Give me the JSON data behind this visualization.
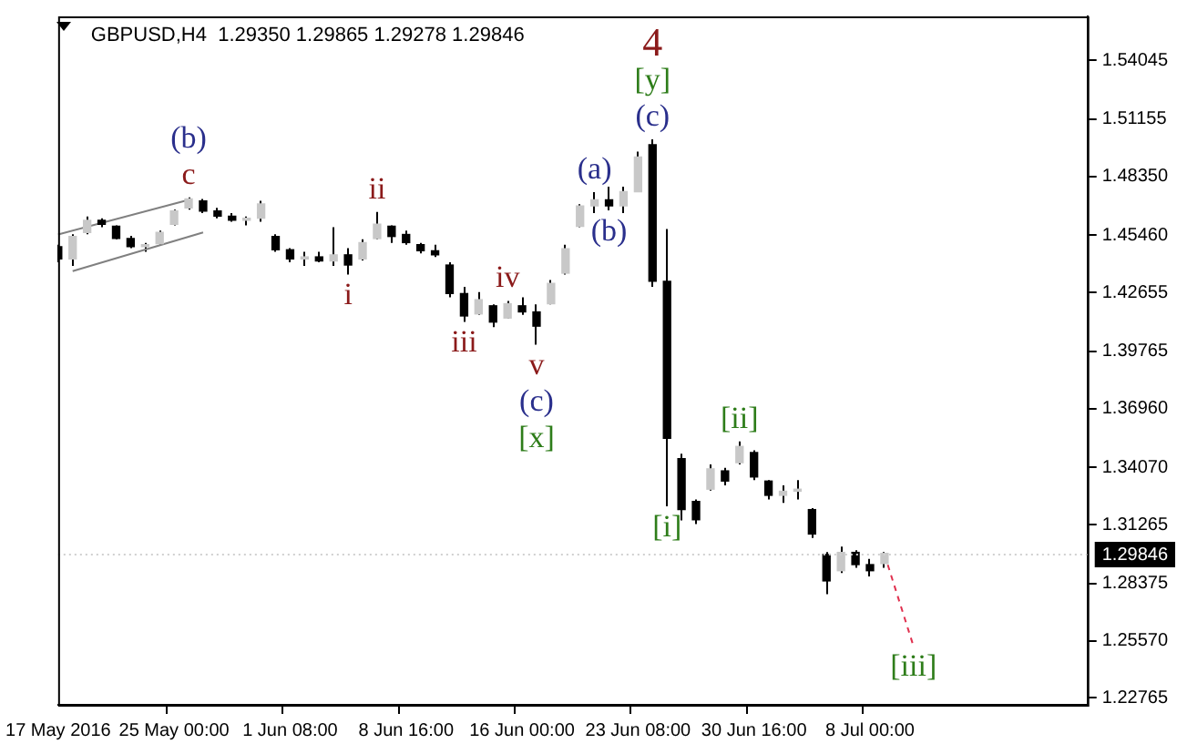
{
  "chart_data": {
    "type": "candlestick",
    "title": "GBPUSD,H4  1.29350 1.29865 1.29278 1.29846",
    "categories": [
      "17 May 2016",
      null,
      null,
      null,
      null,
      null,
      null,
      null,
      "25 May 00:00",
      null,
      null,
      null,
      null,
      null,
      null,
      null,
      "1 Jun 08:00",
      null,
      null,
      null,
      null,
      null,
      null,
      null,
      "8 Jun 16:00",
      null,
      null,
      null,
      null,
      null,
      null,
      null,
      "16 Jun 00:00",
      null,
      null,
      null,
      null,
      null,
      null,
      null,
      "23 Jun 08:00",
      null,
      null,
      null,
      null,
      null,
      null,
      null,
      "30 Jun 16:00",
      null,
      null,
      null,
      null,
      null,
      null,
      null,
      "8 Jul 00:00",
      null,
      null,
      null,
      null,
      null,
      null,
      null,
      null,
      null,
      null,
      null,
      null,
      null,
      null,
      null
    ],
    "ohlc": [
      [
        1.449,
        1.45,
        1.4414,
        1.443
      ],
      [
        1.443,
        1.4551,
        1.4396,
        1.454
      ],
      [
        1.456,
        1.4638,
        1.4551,
        1.462
      ],
      [
        1.462,
        1.4629,
        1.4586,
        1.46
      ],
      [
        1.459,
        1.4595,
        1.4526,
        1.453
      ],
      [
        1.453,
        1.4543,
        1.4483,
        1.449
      ],
      [
        1.449,
        1.4508,
        1.4465,
        1.45
      ],
      [
        1.4505,
        1.4569,
        1.45,
        1.456
      ],
      [
        1.46,
        1.4672,
        1.4595,
        1.4665
      ],
      [
        1.468,
        1.4732,
        1.4672,
        1.4725
      ],
      [
        1.4715,
        1.4724,
        1.4655,
        1.4665
      ],
      [
        1.4665,
        1.4681,
        1.4629,
        1.464
      ],
      [
        1.464,
        1.4655,
        1.4612,
        1.462
      ],
      [
        1.462,
        1.4638,
        1.4595,
        1.463
      ],
      [
        1.463,
        1.4715,
        1.4612,
        1.47
      ],
      [
        1.454,
        1.4551,
        1.4465,
        1.4475
      ],
      [
        1.4475,
        1.4483,
        1.4414,
        1.443
      ],
      [
        1.443,
        1.4465,
        1.4396,
        1.444
      ],
      [
        1.444,
        1.4465,
        1.4414,
        1.442
      ],
      [
        1.442,
        1.4586,
        1.4396,
        1.445
      ],
      [
        1.445,
        1.4483,
        1.4353,
        1.44
      ],
      [
        1.443,
        1.4526,
        1.4422,
        1.451
      ],
      [
        1.453,
        1.466,
        1.4526,
        1.46
      ],
      [
        1.459,
        1.4595,
        1.4508,
        1.454
      ],
      [
        1.455,
        1.4569,
        1.45,
        1.451
      ],
      [
        1.45,
        1.4508,
        1.4457,
        1.447
      ],
      [
        1.447,
        1.45,
        1.4439,
        1.445
      ],
      [
        1.44,
        1.4414,
        1.4241,
        1.426
      ],
      [
        1.426,
        1.4293,
        1.4121,
        1.415
      ],
      [
        1.416,
        1.4267,
        1.4155,
        1.423
      ],
      [
        1.42,
        1.4207,
        1.4095,
        1.412
      ],
      [
        1.414,
        1.4224,
        1.4138,
        1.421
      ],
      [
        1.42,
        1.4241,
        1.4155,
        1.417
      ],
      [
        1.417,
        1.4207,
        1.4009,
        1.41
      ],
      [
        1.421,
        1.4327,
        1.4207,
        1.431
      ],
      [
        1.436,
        1.45,
        1.4353,
        1.448
      ],
      [
        1.459,
        1.4698,
        1.4586,
        1.469
      ],
      [
        1.469,
        1.4758,
        1.4655,
        1.472
      ],
      [
        1.472,
        1.4784,
        1.4668,
        1.469
      ],
      [
        1.469,
        1.4784,
        1.4655,
        1.476
      ],
      [
        1.476,
        1.4956,
        1.4758,
        1.493
      ],
      [
        1.499,
        1.5017,
        1.4293,
        1.432
      ],
      [
        1.432,
        1.4577,
        1.3216,
        1.355
      ],
      [
        1.345,
        1.3474,
        1.3147,
        1.32
      ],
      [
        1.324,
        1.325,
        1.3129,
        1.315
      ],
      [
        1.33,
        1.3422,
        1.3293,
        1.34
      ],
      [
        1.339,
        1.3405,
        1.3319,
        1.334
      ],
      [
        1.343,
        1.3534,
        1.3422,
        1.351
      ],
      [
        1.348,
        1.3491,
        1.3345,
        1.336
      ],
      [
        1.334,
        1.3345,
        1.325,
        1.327
      ],
      [
        1.327,
        1.3319,
        1.3233,
        1.329
      ],
      [
        1.329,
        1.3345,
        1.325,
        1.33
      ],
      [
        1.32,
        1.3207,
        1.3061,
        1.308
      ],
      [
        1.298,
        1.2992,
        1.2785,
        1.285
      ],
      [
        1.29,
        1.3018,
        1.2889,
        1.299
      ],
      [
        1.299,
        1.3001,
        1.2914,
        1.293
      ],
      [
        1.293,
        1.2958,
        1.2872,
        1.29
      ],
      [
        1.2935,
        1.2992,
        1.2914,
        1.2985
      ],
      null,
      null,
      null,
      null,
      null,
      null,
      null,
      null,
      null,
      null,
      null,
      null,
      null,
      null
    ],
    "color": "#000000",
    "colors": [
      "#000000",
      "#c8c8c8",
      "#c8c8c8",
      "#000000",
      "#000000",
      "#000000",
      "#c8c8c8",
      "#c8c8c8",
      "#c8c8c8",
      "#c8c8c8",
      "#000000",
      "#000000",
      "#000000",
      "#c8c8c8",
      "#c8c8c8",
      "#000000",
      "#000000",
      "#c8c8c8",
      "#000000",
      "#c8c8c8",
      "#000000",
      "#c8c8c8",
      "#c8c8c8",
      "#000000",
      "#000000",
      "#000000",
      "#000000",
      "#000000",
      "#000000",
      "#c8c8c8",
      "#000000",
      "#c8c8c8",
      "#000000",
      "#000000",
      "#c8c8c8",
      "#c8c8c8",
      "#c8c8c8",
      "#c8c8c8",
      "#000000",
      "#c8c8c8",
      "#c8c8c8",
      "#000000",
      "#000000",
      "#000000",
      "#000000",
      "#c8c8c8",
      "#000000",
      "#c8c8c8",
      "#000000",
      "#000000",
      "#c8c8c8",
      "#c8c8c8",
      "#000000",
      "#000000",
      "#c8c8c8",
      "#000000",
      "#000000",
      "#c8c8c8",
      null,
      null,
      null,
      null,
      null,
      null,
      null,
      null,
      null,
      null,
      null,
      null,
      null,
      null
    ],
    "series": [
      {
        "type": "line",
        "values": [
          1.455,
          null,
          null,
          null,
          null,
          null,
          null,
          null,
          null,
          1.472,
          null,
          null,
          null,
          null,
          null,
          null,
          null,
          null,
          null,
          null,
          null,
          null,
          null,
          null,
          null,
          null,
          null,
          null,
          null,
          null,
          null,
          null,
          null,
          null,
          null,
          null,
          null,
          null,
          null,
          null,
          null,
          null,
          null,
          null,
          null,
          null,
          null,
          null,
          null,
          null,
          null,
          null,
          null,
          null,
          null,
          null,
          null,
          null,
          null,
          null,
          null,
          null,
          null,
          null,
          null,
          null,
          null,
          null,
          null,
          null,
          null,
          null
        ],
        "color": "#808080",
        "line_style": "solid"
      },
      {
        "type": "line",
        "values": [
          null,
          1.437,
          null,
          null,
          null,
          null,
          null,
          null,
          null,
          null,
          1.456,
          null,
          null,
          null,
          null,
          null,
          null,
          null,
          null,
          null,
          null,
          null,
          null,
          null,
          null,
          null,
          null,
          null,
          null,
          null,
          null,
          null,
          null,
          null,
          null,
          null,
          null,
          null,
          null,
          null,
          null,
          null,
          null,
          null,
          null,
          null,
          null,
          null,
          null,
          null,
          null,
          null,
          null,
          null,
          null,
          null,
          null,
          null,
          null,
          null,
          null,
          null,
          null,
          null,
          null,
          null,
          null,
          null,
          null,
          null,
          null,
          null
        ],
        "color": "#808080",
        "line_style": "solid"
      },
      {
        "type": "line",
        "values": [
          null,
          null,
          null,
          null,
          null,
          null,
          null,
          null,
          null,
          null,
          null,
          null,
          null,
          null,
          null,
          null,
          null,
          null,
          null,
          null,
          null,
          null,
          null,
          null,
          null,
          null,
          null,
          null,
          null,
          null,
          null,
          null,
          null,
          null,
          null,
          null,
          null,
          null,
          null,
          null,
          null,
          null,
          null,
          null,
          null,
          null,
          null,
          null,
          null,
          null,
          null,
          null,
          null,
          null,
          null,
          null,
          null,
          1.298,
          null,
          1.253,
          null,
          null,
          null,
          null,
          null,
          null,
          null,
          null,
          null,
          null,
          null,
          null
        ],
        "color": "#e0304e",
        "line_style": "dashed"
      }
    ],
    "ylim": [
      1.2242,
      1.562
    ],
    "yticks": [
      {
        "value": 1.54045,
        "label": "1.54045"
      },
      {
        "value": 1.51155,
        "label": "1.51155"
      },
      {
        "value": 1.4835,
        "label": "1.48350"
      },
      {
        "value": 1.4546,
        "label": "1.45460"
      },
      {
        "value": 1.42655,
        "label": "1.42655"
      },
      {
        "value": 1.39765,
        "label": "1.39765"
      },
      {
        "value": 1.3696,
        "label": "1.36960"
      },
      {
        "value": 1.3407,
        "label": "1.34070"
      },
      {
        "value": 1.31265,
        "label": "1.31265"
      },
      {
        "value": 1.28375,
        "label": "1.28375"
      },
      {
        "value": 1.2557,
        "label": "1.25570"
      },
      {
        "value": 1.22765,
        "label": "1.22765"
      }
    ],
    "ref_lines": [
      {
        "axis": "y",
        "value": 1.29846,
        "label": "1.29846"
      }
    ],
    "annotations": [
      {
        "text": "c",
        "y": 1.4732
      },
      {
        "text": "(b)",
        "y": 1.4732
      },
      {
        "text": "ii",
        "y": 1.466
      },
      {
        "text": "i",
        "y": 1.4353
      },
      {
        "text": "iii",
        "y": 1.4121
      },
      {
        "text": "iv",
        "y": 1.4224
      },
      {
        "text": "v",
        "y": 1.4009
      },
      {
        "text": "(c)",
        "y": 1.4009
      },
      {
        "text": "[x]",
        "y": 1.4009
      },
      {
        "text": "(a)",
        "y": 1.4758
      },
      {
        "text": "(b)",
        "y": 1.4668
      },
      {
        "text": "(c)",
        "y": 1.5017
      },
      {
        "text": "[y]",
        "y": 1.5017
      },
      {
        "text": "4",
        "y": 1.5017
      },
      {
        "text": "[i]",
        "y": 1.3216
      },
      {
        "text": "[ii]",
        "y": 1.3534
      },
      {
        "text": "[iii]",
        "y": 1.253
      }
    ],
    "grid": false,
    "legend": false
  }
}
